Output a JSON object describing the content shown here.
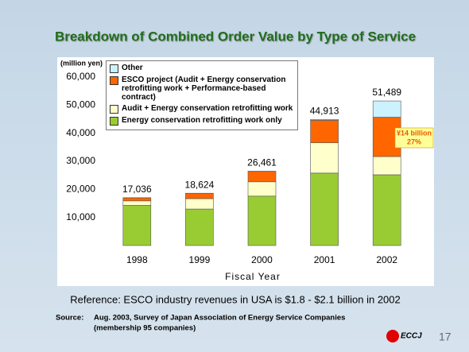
{
  "chart_data": {
    "type": "stacked-bar",
    "title": "Breakdown of Combined Order Value by Type of Service",
    "y_unit": "(million yen)",
    "x_label": "Fiscal Year",
    "categories": [
      "1998",
      "1999",
      "2000",
      "2001",
      "2002"
    ],
    "series": [
      {
        "name": "Energy conservation retrofitting work only",
        "color": "#99cc33",
        "values": [
          14300,
          13000,
          17600,
          25800,
          25200
        ]
      },
      {
        "name": "Audit + Energy conservation retrofitting work",
        "color": "#ffffcc",
        "values": [
          1600,
          3700,
          5100,
          10800,
          6500
        ]
      },
      {
        "name": "ESCO project (Audit + Energy conservation retrofitting work + Performance-based contract)",
        "color": "#ff6600",
        "values": [
          1100,
          1900,
          3700,
          8000,
          14000
        ]
      },
      {
        "name": "Other",
        "color": "#ccf2ff",
        "values": [
          36,
          24,
          61,
          313,
          5789
        ]
      }
    ],
    "totals": {
      "values": [
        17036,
        18624,
        26461,
        44913,
        51489
      ],
      "value_labels": [
        "17,036",
        "18,624",
        "26,461",
        "44,913",
        "51,489"
      ]
    },
    "annotation": {
      "text": "¥14 billion",
      "subtext": "27%"
    },
    "ylim": [
      0,
      60000
    ],
    "yticks": [
      {
        "value": 10000,
        "label": "10,000"
      },
      {
        "value": 20000,
        "label": "20,000"
      },
      {
        "value": 30000,
        "label": "30,000"
      },
      {
        "value": 40000,
        "label": "40,000"
      },
      {
        "value": 50000,
        "label": "50,000"
      },
      {
        "value": 60000,
        "label": "60,000"
      }
    ]
  },
  "reference": "Reference: ESCO industry revenues in USA is $1.8 - $2.1 billion in 2002",
  "source": {
    "label": "Source:",
    "line1": "Aug. 2003, Survey of Japan Association of Energy Service Companies",
    "line2": "(membership 95 companies)"
  },
  "logo": "ECCJ",
  "page_number": "17"
}
